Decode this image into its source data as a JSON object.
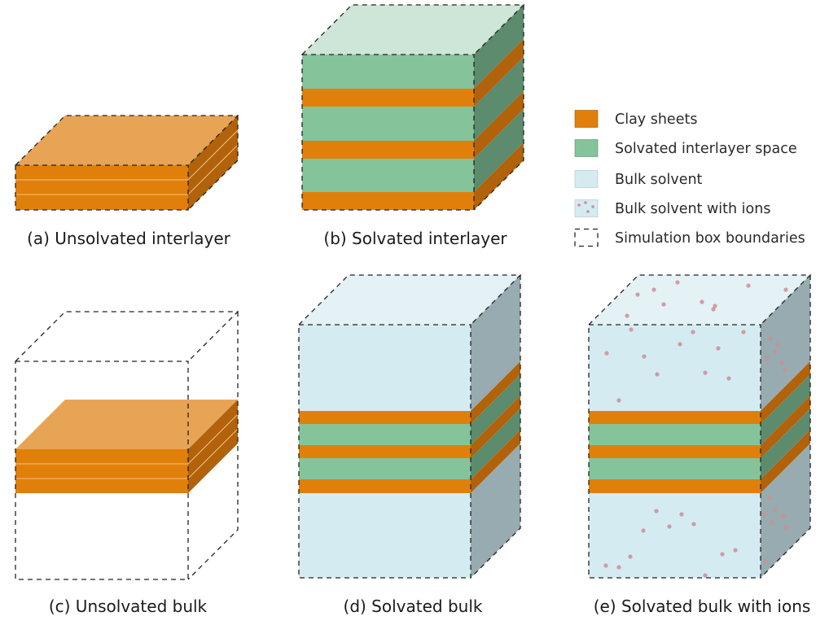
{
  "colors": {
    "clay_front": "#E0800A",
    "clay_top": "#E8A455",
    "clay_side": "#B2620A",
    "solvated_front": "#85C39B",
    "solvated_top": "#CDE6D7",
    "solvated_side": "#5C8B6D",
    "bulk_front": "#D4EBF1",
    "bulk_top": "#E4F2F6",
    "bulk_side": "#97ABB0",
    "ion": "#CC8E96"
  },
  "panels": [
    {
      "id": "a",
      "caption": "(a) Unsolvated interlayer"
    },
    {
      "id": "b",
      "caption": "(b) Solvated interlayer"
    },
    {
      "id": "c",
      "caption": "(c) Unsolvated bulk"
    },
    {
      "id": "d",
      "caption": "(d) Solvated bulk"
    },
    {
      "id": "e",
      "caption": "(e) Solvated bulk with ions"
    }
  ],
  "legend": [
    {
      "label": "Clay sheets",
      "swatch": "clay"
    },
    {
      "label": "Solvated interlayer space",
      "swatch": "solvated"
    },
    {
      "label": "Bulk solvent",
      "swatch": "bulk"
    },
    {
      "label": "Bulk solvent with ions",
      "swatch": "ions"
    },
    {
      "label": "Simulation box boundaries",
      "swatch": "dashed"
    }
  ]
}
